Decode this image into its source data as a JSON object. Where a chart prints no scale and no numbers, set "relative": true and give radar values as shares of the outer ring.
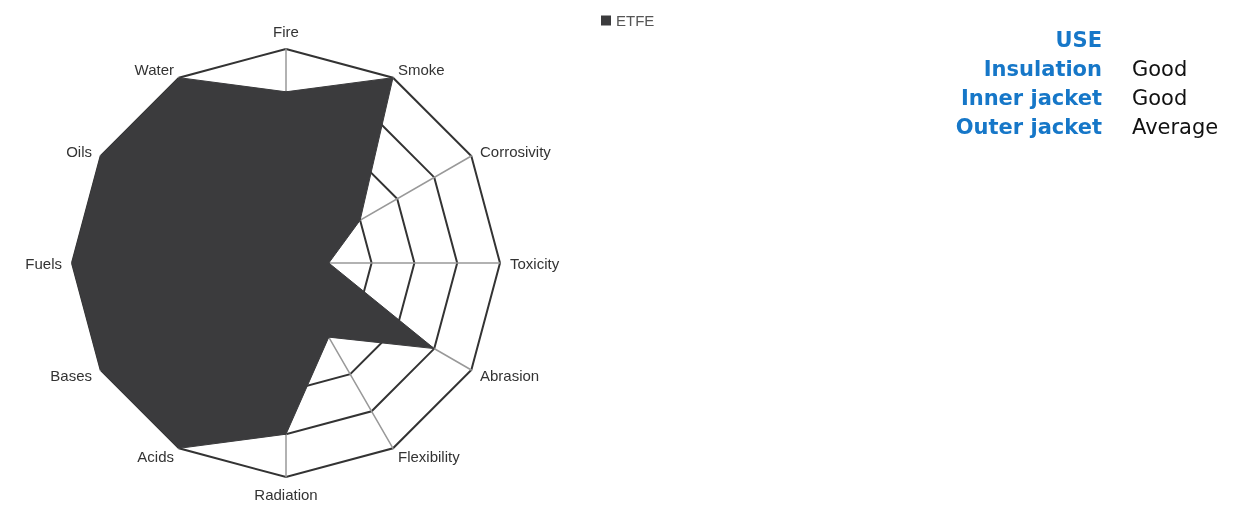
{
  "chart_data": [
    {
      "type": "radar",
      "relative": true,
      "categories": [
        "Fire",
        "Smoke",
        "Corrosivity",
        "Toxicity",
        "Abrasion",
        "Flexibility",
        "Radiation",
        "Acids",
        "Bases",
        "Fuels",
        "Oils",
        "Water"
      ],
      "series": [
        {
          "name": "ETFE",
          "color": "#3b3b3d",
          "values": [
            0.8,
            1,
            0.4,
            0.2,
            0.8,
            0.4,
            0.8,
            1,
            1,
            1,
            1,
            1
          ]
        }
      ],
      "legend": "top right",
      "marker": "none"
    },
    {
      "type": "other",
      "title": "USE",
      "annotations": [
        "Insulation",
        "Good",
        "Inner jacket",
        "Good",
        "Outer jacket",
        "Average"
      ]
    }
  ]
}
